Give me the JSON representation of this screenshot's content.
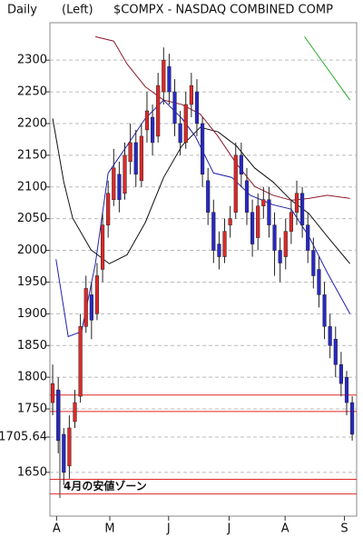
{
  "chart_data": {
    "type": "candlestick",
    "header": [
      "Daily",
      "(Left)",
      "$COMPX - NASDAQ COMBINED COMP"
    ],
    "x": [
      1,
      2,
      3,
      4,
      5,
      6,
      7,
      8,
      9,
      10,
      11,
      12,
      13,
      14,
      15,
      16,
      17,
      18,
      19,
      20,
      21,
      22,
      23,
      24,
      25,
      26,
      27,
      28,
      29,
      30,
      31,
      32,
      33,
      34,
      35,
      36,
      37,
      38,
      39,
      40,
      41,
      42,
      43,
      44,
      45,
      46,
      47,
      48,
      49,
      50,
      51,
      52,
      53,
      54,
      55
    ],
    "open": [
      1760,
      1780,
      1710,
      1660,
      1730,
      1770,
      1880,
      1930,
      1900,
      1970,
      2040,
      2080,
      2120,
      2090,
      2140,
      2170,
      2110,
      2190,
      2210,
      2180,
      2250,
      2290,
      2250,
      2200,
      2170,
      2230,
      2250,
      2200,
      2110,
      2060,
      2010,
      1990,
      2040,
      2060,
      2150,
      2110,
      2060,
      2020,
      2070,
      2080,
      2040,
      2000,
      1990,
      2030,
      2060,
      2090,
      2040,
      2000,
      1970,
      1930,
      1880,
      1860,
      1820,
      1800,
      1760
    ],
    "high": [
      1820,
      1800,
      1720,
      1740,
      1780,
      1900,
      1960,
      1950,
      1980,
      2060,
      2110,
      2160,
      2140,
      2170,
      2200,
      2190,
      2200,
      2250,
      2230,
      2280,
      2320,
      2310,
      2270,
      2220,
      2250,
      2280,
      2270,
      2210,
      2130,
      2080,
      2030,
      2050,
      2070,
      2170,
      2170,
      2130,
      2080,
      2090,
      2100,
      2100,
      2060,
      2020,
      2050,
      2080,
      2110,
      2100,
      2060,
      2020,
      1990,
      1950,
      1900,
      1880,
      1840,
      1810,
      1770
    ],
    "low": [
      1740,
      1680,
      1630,
      1640,
      1720,
      1760,
      1870,
      1860,
      1890,
      1950,
      2020,
      2070,
      2060,
      2080,
      2120,
      2100,
      2100,
      2170,
      2150,
      2170,
      2230,
      2230,
      2180,
      2150,
      2160,
      2210,
      2180,
      2100,
      2040,
      1980,
      1970,
      1980,
      2020,
      2050,
      2100,
      2040,
      1990,
      2000,
      2050,
      2020,
      1960,
      1950,
      1970,
      2010,
      2040,
      2020,
      1980,
      1940,
      1910,
      1860,
      1830,
      1800,
      1770,
      1740,
      1700
    ],
    "close": [
      1790,
      1700,
      1650,
      1720,
      1760,
      1880,
      1940,
      1890,
      1960,
      2040,
      2090,
      2130,
      2080,
      2150,
      2170,
      2120,
      2180,
      2220,
      2170,
      2260,
      2300,
      2250,
      2200,
      2170,
      2230,
      2260,
      2200,
      2120,
      2060,
      2000,
      1990,
      2030,
      2050,
      2150,
      2120,
      2060,
      2010,
      2070,
      2080,
      2040,
      2000,
      1980,
      2030,
      2060,
      2090,
      2040,
      2000,
      1960,
      1930,
      1880,
      1850,
      1820,
      1790,
      1760,
      1710
    ],
    "up_color": "#e02828",
    "down_color": "#2828c8",
    "series": [
      {
        "color": "#2020b0",
        "x": [
          1.6,
          3.8,
          6.2,
          8.7,
          11,
          14.4,
          17.7,
          21,
          24.3,
          26.7,
          30,
          33.3,
          36.6,
          40.7,
          44,
          47.2,
          50.5,
          54.6
        ],
        "values": [
          1986,
          1864,
          1872,
          1979,
          2122,
          2165,
          2208,
          2237,
          2208,
          2180,
          2122,
          2115,
          2087,
          2072,
          2065,
          2022,
          1965,
          1900
        ]
      },
      {
        "color": "#111111",
        "x": [
          1,
          3,
          4.6,
          7.9,
          11.2,
          14.4,
          17.7,
          21,
          24.3,
          27.6,
          30.8,
          34.1,
          37.4,
          40.7,
          44,
          47.2,
          50.5,
          54.6
        ],
        "values": [
          2208,
          2108,
          2051,
          2001,
          1979,
          1993,
          2044,
          2115,
          2165,
          2194,
          2187,
          2165,
          2130,
          2108,
          2079,
          2058,
          2022,
          1979
        ]
      },
      {
        "color": "#8b1a2a",
        "x": [
          8.7,
          12,
          14.4,
          17.7,
          21,
          24.3,
          27.6,
          30.8,
          34.1,
          37.4,
          40.7,
          44,
          47.2,
          50.5,
          54.6
        ],
        "values": [
          2337,
          2330,
          2294,
          2258,
          2237,
          2230,
          2215,
          2180,
          2137,
          2101,
          2087,
          2079,
          2082,
          2087,
          2082
        ]
      },
      {
        "color": "#22aa22",
        "x": [
          46.4,
          54.6
        ],
        "values": [
          2337,
          2237
        ]
      }
    ],
    "levels": [
      1772,
      1746,
      1639,
      1616
    ],
    "level_color": "#e02828",
    "annotation": "4月の安値ゾーン",
    "xlim": [
      0.5,
      55.8
    ],
    "xticks": [
      {
        "value": 1.7,
        "label": "A"
      },
      {
        "value": 11.3,
        "label": "M"
      },
      {
        "value": 21.9,
        "label": "J"
      },
      {
        "value": 32.8,
        "label": "J"
      },
      {
        "value": 42.9,
        "label": "A"
      },
      {
        "value": 53.6,
        "label": "S"
      }
    ],
    "ylim": [
      1581,
      2359
    ],
    "yticks": [
      1650,
      1705.64,
      1750,
      1800,
      1850,
      1900,
      1950,
      2000,
      2050,
      2100,
      2150,
      2200,
      2250,
      2300
    ],
    "grid": true
  }
}
